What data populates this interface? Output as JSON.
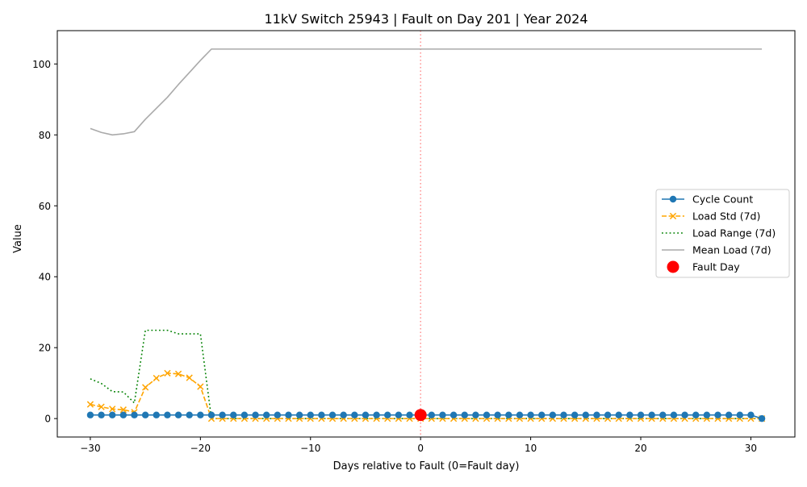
{
  "chart_data": {
    "type": "line",
    "title": "11kV Switch 25943 | Fault on Day 201 | Year 2024",
    "xlabel": "Days relative to Fault (0=Fault day)",
    "ylabel": "Value",
    "xlim": [
      -33,
      34
    ],
    "ylim": [
      -5.2,
      109.4
    ],
    "xticks": [
      -30,
      -20,
      -10,
      0,
      10,
      20,
      30
    ],
    "yticks": [
      0,
      20,
      40,
      60,
      80,
      100
    ],
    "xtick_labels": [
      "−30",
      "−20",
      "−10",
      "0",
      "10",
      "20",
      "30"
    ],
    "ytick_labels": [
      "0",
      "20",
      "40",
      "60",
      "80",
      "100"
    ],
    "grid": false,
    "legend_position": "center-right",
    "fault_marker_x": 0,
    "x": [
      -30,
      -29,
      -28,
      -27,
      -26,
      -25,
      -24,
      -23,
      -22,
      -21,
      -20,
      -19,
      -18,
      -17,
      -16,
      -15,
      -14,
      -13,
      -12,
      -11,
      -10,
      -9,
      -8,
      -7,
      -6,
      -5,
      -4,
      -3,
      -2,
      -1,
      0,
      1,
      2,
      3,
      4,
      5,
      6,
      7,
      8,
      9,
      10,
      11,
      12,
      13,
      14,
      15,
      16,
      17,
      18,
      19,
      20,
      21,
      22,
      23,
      24,
      25,
      26,
      27,
      28,
      29,
      30,
      31
    ],
    "series": [
      {
        "name": "Cycle Count",
        "color": "#1f77b4",
        "style": "solid",
        "marker": "circle",
        "values": [
          1,
          1,
          1,
          1,
          1,
          1,
          1,
          1,
          1,
          1,
          1,
          1,
          1,
          1,
          1,
          1,
          1,
          1,
          1,
          1,
          1,
          1,
          1,
          1,
          1,
          1,
          1,
          1,
          1,
          1,
          1,
          1,
          1,
          1,
          1,
          1,
          1,
          1,
          1,
          1,
          1,
          1,
          1,
          1,
          1,
          1,
          1,
          1,
          1,
          1,
          1,
          1,
          1,
          1,
          1,
          1,
          1,
          1,
          1,
          1,
          1,
          0
        ]
      },
      {
        "name": "Load Std (7d)",
        "color": "#ffa500",
        "style": "dashed",
        "marker": "x",
        "values": [
          4.0,
          3.3,
          2.7,
          2.5,
          1.8,
          8.8,
          11.4,
          12.8,
          12.6,
          11.5,
          9.0,
          0,
          0,
          0,
          0,
          0,
          0,
          0,
          0,
          0,
          0,
          0,
          0,
          0,
          0,
          0,
          0,
          0,
          0,
          0,
          0,
          0,
          0,
          0,
          0,
          0,
          0,
          0,
          0,
          0,
          0,
          0,
          0,
          0,
          0,
          0,
          0,
          0,
          0,
          0,
          0,
          0,
          0,
          0,
          0,
          0,
          0,
          0,
          0,
          0,
          0,
          0
        ]
      },
      {
        "name": "Load Range (7d)",
        "color": "#008000",
        "style": "dotted",
        "marker": "none",
        "values": [
          11.2,
          9.9,
          7.6,
          7.5,
          4.4,
          24.9,
          24.9,
          24.9,
          23.9,
          23.9,
          23.9,
          0,
          0,
          0,
          0,
          0,
          0,
          0,
          0,
          0,
          0,
          0,
          0,
          0,
          0,
          0,
          0,
          0,
          0,
          0,
          0,
          0,
          0,
          0,
          0,
          0,
          0,
          0,
          0,
          0,
          0,
          0,
          0,
          0,
          0,
          0,
          0,
          0,
          0,
          0,
          0,
          0,
          0,
          0,
          0,
          0,
          0,
          0,
          0,
          0,
          0,
          0
        ]
      },
      {
        "name": "Mean Load (7d)",
        "color": "#aaaaaa",
        "style": "solid",
        "marker": "none",
        "values": [
          81.8,
          80.7,
          80.0,
          80.3,
          80.9,
          84.4,
          87.5,
          90.6,
          94.2,
          97.6,
          101.0,
          104.2,
          104.2,
          104.2,
          104.2,
          104.2,
          104.2,
          104.2,
          104.2,
          104.2,
          104.2,
          104.2,
          104.2,
          104.2,
          104.2,
          104.2,
          104.2,
          104.2,
          104.2,
          104.2,
          104.2,
          104.2,
          104.2,
          104.2,
          104.2,
          104.2,
          104.2,
          104.2,
          104.2,
          104.2,
          104.2,
          104.2,
          104.2,
          104.2,
          104.2,
          104.2,
          104.2,
          104.2,
          104.2,
          104.2,
          104.2,
          104.2,
          104.2,
          104.2,
          104.2,
          104.2,
          104.2,
          104.2,
          104.2,
          104.2,
          104.2,
          104.2
        ]
      },
      {
        "name": "Fault Day",
        "color": "#ff0000",
        "style": "scatter",
        "marker": "big-circle",
        "points": [
          {
            "x": 0,
            "y": 1
          }
        ]
      }
    ]
  }
}
